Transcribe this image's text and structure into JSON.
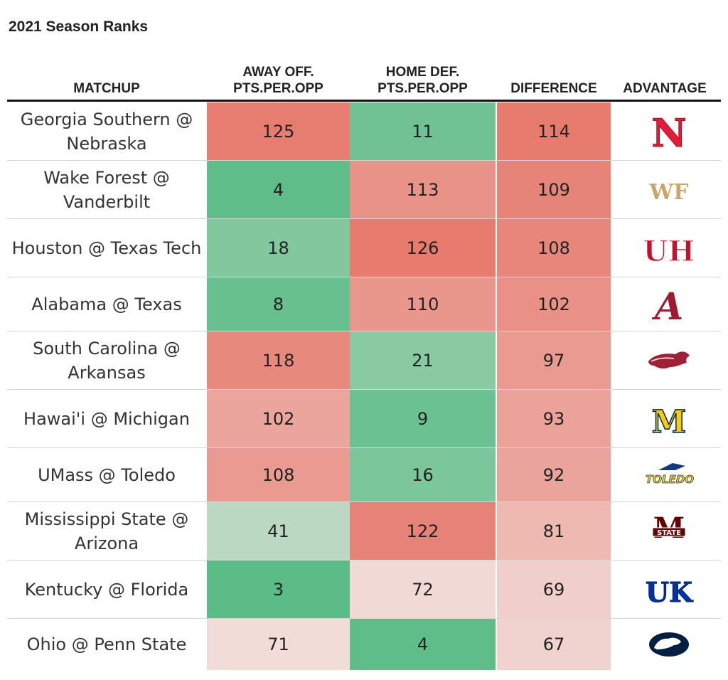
{
  "title": "2021 Season Ranks",
  "columns": {
    "matchup": "MATCHUP",
    "away_off": [
      "AWAY OFF.",
      "PTS.PER.OPP"
    ],
    "home_def": [
      "HOME DEF.",
      "PTS.PER.OPP"
    ],
    "difference": "DIFFERENCE",
    "advantage": "ADVANTAGE"
  },
  "chart_data": {
    "type": "table",
    "title": "2021 Season Ranks",
    "columns": [
      "MATCHUP",
      "AWAY OFF. PTS.PER.OPP",
      "HOME DEF. PTS.PER.OPP",
      "DIFFERENCE",
      "ADVANTAGE"
    ],
    "rows": [
      {
        "matchup": "Georgia Southern @ Nebraska",
        "away_off": 125,
        "home_def": 11,
        "difference": 114,
        "advantage_logo": "nebraska-logo-icon"
      },
      {
        "matchup": "Wake Forest @ Vanderbilt",
        "away_off": 4,
        "home_def": 113,
        "difference": 109,
        "advantage_logo": "wake-forest-logo-icon"
      },
      {
        "matchup": "Houston @ Texas Tech",
        "away_off": 18,
        "home_def": 126,
        "difference": 108,
        "advantage_logo": "houston-logo-icon"
      },
      {
        "matchup": "Alabama @ Texas",
        "away_off": 8,
        "home_def": 110,
        "difference": 102,
        "advantage_logo": "alabama-logo-icon"
      },
      {
        "matchup": "South Carolina @ Arkansas",
        "away_off": 118,
        "home_def": 21,
        "difference": 97,
        "advantage_logo": "arkansas-logo-icon"
      },
      {
        "matchup": "Hawai'i @ Michigan",
        "away_off": 102,
        "home_def": 9,
        "difference": 93,
        "advantage_logo": "michigan-logo-icon"
      },
      {
        "matchup": "UMass @ Toledo",
        "away_off": 108,
        "home_def": 16,
        "difference": 92,
        "advantage_logo": "toledo-logo-icon"
      },
      {
        "matchup": "Mississippi State @ Arizona",
        "away_off": 41,
        "home_def": 122,
        "difference": 81,
        "advantage_logo": "mississippi-state-logo-icon"
      },
      {
        "matchup": "Kentucky @ Florida",
        "away_off": 3,
        "home_def": 72,
        "difference": 69,
        "advantage_logo": "kentucky-logo-icon"
      },
      {
        "matchup": "Ohio @ Penn State",
        "away_off": 71,
        "home_def": 4,
        "difference": 67,
        "advantage_logo": "penn-state-logo-icon"
      }
    ],
    "color_scale": {
      "low": "#57bb84",
      "mid": "#f3e9e6",
      "high": "#e67b6e"
    }
  },
  "logos": {
    "nebraska": "N",
    "wake_forest": "WF",
    "houston": "UH",
    "alabama": "A",
    "michigan": "M",
    "toledo": "TOLEDO",
    "mississippi_state": "STATE",
    "kentucky": "UK"
  }
}
